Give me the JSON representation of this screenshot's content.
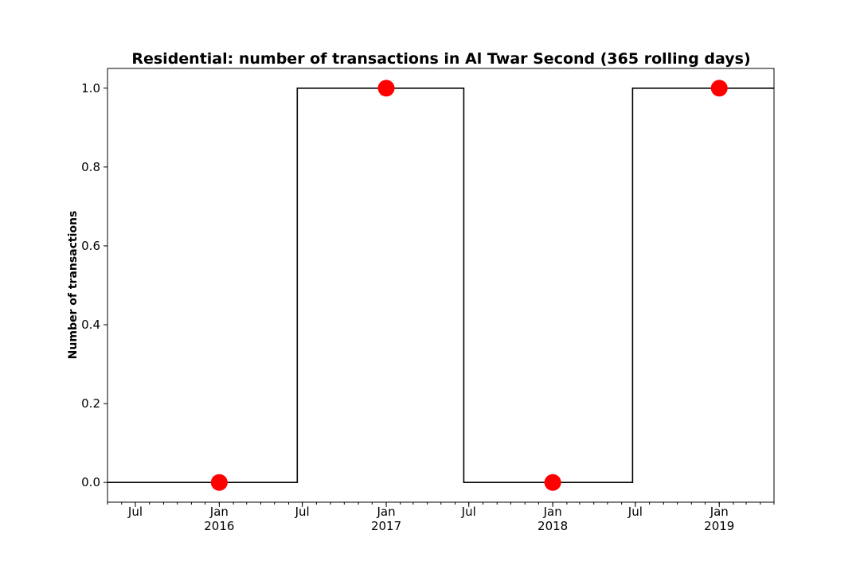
{
  "chart_data": {
    "type": "line",
    "drawstyle": "steps-post",
    "title": "Residential: number of transactions in Al Twar Second (365 rolling days)",
    "xlabel": "",
    "ylabel": "Number of transactions",
    "xlim": [
      "2015-05-01",
      "2019-05-01"
    ],
    "ylim": [
      -0.05,
      1.05
    ],
    "yticks": [
      0.0,
      0.2,
      0.4,
      0.6,
      0.8,
      1.0
    ],
    "ytick_labels": [
      "0.0",
      "0.2",
      "0.4",
      "0.6",
      "0.8",
      "1.0"
    ],
    "xticks_major": [
      {
        "date": "2015-07-01",
        "label": "Jul",
        "sublabel": ""
      },
      {
        "date": "2016-01-01",
        "label": "Jan",
        "sublabel": "2016"
      },
      {
        "date": "2016-07-01",
        "label": "Jul",
        "sublabel": ""
      },
      {
        "date": "2017-01-01",
        "label": "Jan",
        "sublabel": "2017"
      },
      {
        "date": "2017-07-01",
        "label": "Jul",
        "sublabel": ""
      },
      {
        "date": "2018-01-01",
        "label": "Jan",
        "sublabel": "2018"
      },
      {
        "date": "2018-07-01",
        "label": "Jul",
        "sublabel": ""
      },
      {
        "date": "2019-01-01",
        "label": "Jan",
        "sublabel": "2019"
      }
    ],
    "grid": false,
    "line_color": "#000000",
    "marker_color": "#ff0000",
    "series": [
      {
        "x": [
          "2015-05-01",
          "2016-06-20",
          "2017-06-20",
          "2018-06-25",
          "2019-05-01"
        ],
        "y": [
          0,
          1,
          0,
          1,
          1
        ]
      }
    ],
    "markers": [
      {
        "x": "2016-01-01",
        "y": 0
      },
      {
        "x": "2017-01-01",
        "y": 1
      },
      {
        "x": "2018-01-01",
        "y": 0
      },
      {
        "x": "2019-01-01",
        "y": 1
      }
    ]
  }
}
